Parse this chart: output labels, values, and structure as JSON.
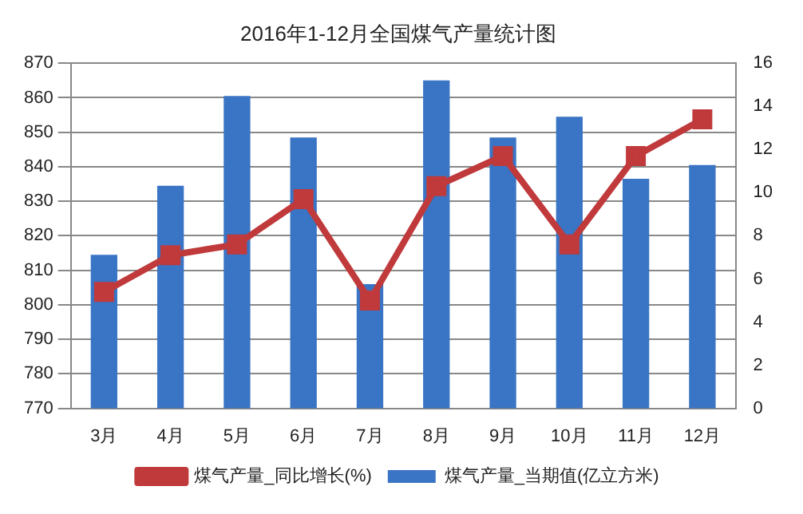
{
  "chart_data": {
    "type": "bar",
    "title": "2016年1-12月全国煤气产量统计图",
    "categories": [
      "3月",
      "4月",
      "5月",
      "6月",
      "7月",
      "8月",
      "9月",
      "10月",
      "11月",
      "12月"
    ],
    "series": [
      {
        "name": "煤气产量_当期值(亿立方米)",
        "color": "#3a74c4",
        "values": [
          814.5,
          834.5,
          860.5,
          848.5,
          806,
          865,
          848.5,
          854.5,
          836.5,
          840.5
        ]
      },
      {
        "name": "煤气产量_同比增长(%)",
        "type": "line",
        "axis": "y2",
        "color": "#c0393b",
        "marker": "square",
        "values": [
          5.4,
          7.1,
          7.6,
          9.7,
          5.0,
          10.3,
          11.7,
          7.6,
          11.7,
          13.4
        ]
      }
    ],
    "ylim": [
      770,
      870
    ],
    "yticks": [
      770,
      780,
      790,
      800,
      810,
      820,
      830,
      840,
      850,
      860,
      870
    ],
    "y2lim": [
      0,
      16
    ],
    "y2ticks": [
      0,
      2,
      4,
      6,
      8,
      10,
      12,
      14,
      16
    ],
    "grid": "y",
    "legend": "bottom"
  }
}
